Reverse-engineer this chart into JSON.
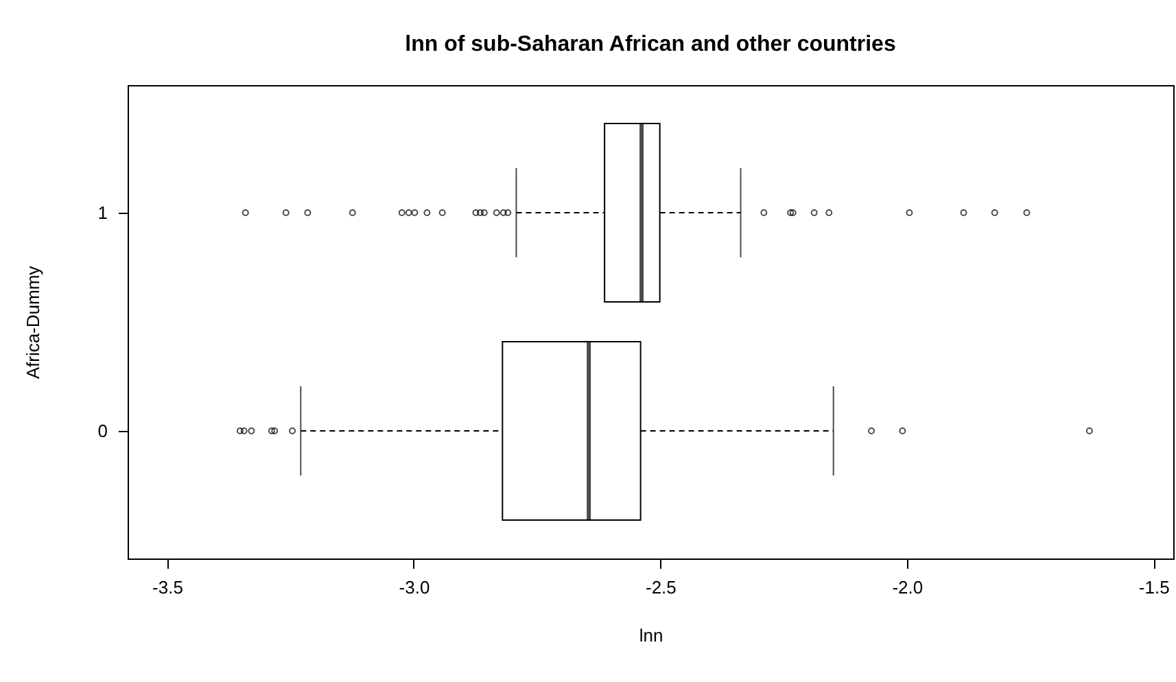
{
  "chart_data": {
    "type": "box",
    "orientation": "horizontal",
    "title": "lnn of sub-Saharan African and other countries",
    "xlabel": "lnn",
    "ylabel": "Africa-Dummy",
    "categories": [
      "1",
      "0"
    ],
    "boxes": [
      {
        "low": -2.792,
        "q1": -2.613,
        "median": -2.538,
        "q3": -2.501,
        "high": -2.337,
        "outliers": [
          -3.341,
          -3.259,
          -3.215,
          -3.124,
          -3.024,
          -3.01,
          -2.998,
          -2.973,
          -2.942,
          -2.874,
          -2.865,
          -2.857,
          -2.832,
          -2.818,
          -2.809,
          -2.29,
          -2.236,
          -2.231,
          -2.188,
          -2.158,
          -1.995,
          -1.885,
          -1.822,
          -1.757
        ]
      },
      {
        "low": -3.229,
        "q1": -2.82,
        "median": -2.645,
        "q3": -2.54,
        "high": -2.149,
        "outliers": [
          -3.352,
          -3.344,
          -3.329,
          -3.288,
          -3.282,
          -3.246,
          -2.072,
          -2.009,
          -1.63
        ]
      }
    ],
    "xlim": [
      -3.58,
      -1.46
    ],
    "xticks": [
      -3.5,
      {
        "value": -3,
        "label": "-3.0"
      },
      -2.5,
      {
        "value": -2,
        "label": "-2.0"
      },
      -1.5
    ],
    "marker": "circle"
  }
}
